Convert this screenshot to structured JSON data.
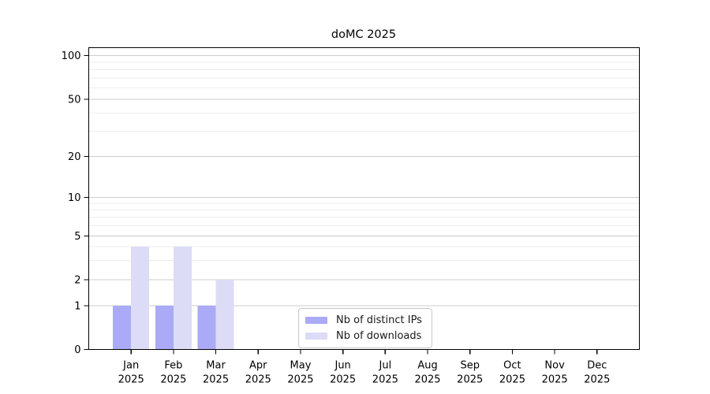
{
  "chart_data": {
    "type": "bar",
    "title": "doMC 2025",
    "categories": [
      "Jan",
      "Feb",
      "Mar",
      "Apr",
      "May",
      "Jun",
      "Jul",
      "Aug",
      "Sep",
      "Oct",
      "Nov",
      "Dec"
    ],
    "year_label": "2025",
    "series": [
      {
        "name": "Nb of distinct IPs",
        "color": "#aaaaf7",
        "values": [
          1,
          1,
          1,
          0,
          0,
          0,
          0,
          0,
          0,
          0,
          0,
          0
        ]
      },
      {
        "name": "Nb of downloads",
        "color": "#dcdcf7",
        "values": [
          4,
          4,
          2,
          0,
          0,
          0,
          0,
          0,
          0,
          0,
          0,
          0
        ]
      }
    ],
    "yticks": [
      0,
      1,
      2,
      5,
      10,
      20,
      50,
      100
    ],
    "minor_yticks": [
      3,
      4,
      6,
      7,
      8,
      9,
      30,
      40,
      60,
      70,
      80,
      90
    ],
    "yscale": "symlog",
    "ylim": [
      0,
      100
    ],
    "xlabel": "",
    "ylabel": "",
    "grid": "horizontal major+minor",
    "legend_position": "inside-bottom-center",
    "colors": {
      "axis": "#000000",
      "major_grid": "#cccccc",
      "minor_grid": "#ededed",
      "tick_label": "#000000"
    }
  }
}
